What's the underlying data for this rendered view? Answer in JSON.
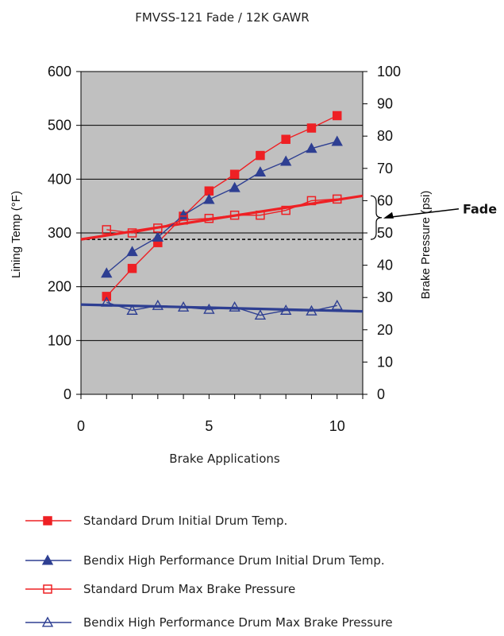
{
  "chart_data": {
    "type": "line",
    "title": "FMVSS-121 Fade / 12K GAWR",
    "xlabel": "Brake Applications",
    "ylabel_left": "Lining Temp (°F)",
    "ylabel_right": "Brake Pressure (psi)",
    "xlim": [
      0,
      11
    ],
    "ylim_left": [
      0,
      600
    ],
    "ylim_right": [
      0,
      100
    ],
    "x_ticks": [
      0,
      5,
      10
    ],
    "y_ticks_left": [
      0,
      100,
      200,
      300,
      400,
      500,
      600
    ],
    "y_ticks_right": [
      0,
      10,
      20,
      30,
      40,
      50,
      60,
      70,
      80,
      90,
      100
    ],
    "grid": true,
    "plot_background": "#c0c0c0",
    "series": [
      {
        "name": "Standard Drum Initial Drum Temp.",
        "axis": "left",
        "color": "#ee2024",
        "marker": "filled-square",
        "x": [
          1,
          2,
          3,
          4,
          5,
          6,
          7,
          8,
          9,
          10
        ],
        "y": [
          182,
          234,
          282,
          331,
          378,
          409,
          444,
          474,
          495,
          518
        ]
      },
      {
        "name": "Bendix High Performance Drum Initial Drum Temp.",
        "axis": "left",
        "color": "#2e3f92",
        "marker": "filled-triangle",
        "x": [
          1,
          2,
          3,
          4,
          5,
          6,
          7,
          8,
          9,
          10
        ],
        "y": [
          225,
          265,
          292,
          333,
          362,
          384,
          413,
          433,
          457,
          470
        ]
      },
      {
        "name": "Standard Drum Max Brake Pressure",
        "axis": "right",
        "color": "#ee2024",
        "marker": "open-square",
        "x": [
          1,
          2,
          3,
          4,
          5,
          6,
          7,
          8,
          9,
          10
        ],
        "y": [
          51,
          50,
          51.5,
          54,
          54.5,
          55.5,
          55.5,
          57,
          60,
          60.5
        ]
      },
      {
        "name": "Bendix High Performance Drum Max Brake Pressure",
        "axis": "right",
        "color": "#2e3f92",
        "marker": "open-triangle",
        "x": [
          1,
          2,
          3,
          4,
          5,
          6,
          7,
          8,
          9,
          10
        ],
        "y": [
          28.5,
          26,
          27.5,
          27,
          26.3,
          27,
          24.5,
          26,
          25.8,
          27.5
        ]
      }
    ],
    "trendlines": [
      {
        "axis": "right",
        "color": "#ee2024",
        "x": [
          0,
          11
        ],
        "y": [
          48,
          61.5
        ]
      },
      {
        "axis": "right",
        "color": "#2e3f92",
        "x": [
          0,
          11
        ],
        "y": [
          27.8,
          25.7
        ]
      }
    ],
    "reference_line": {
      "axis": "right",
      "y": 48,
      "style": "dashed",
      "color": "#000000"
    },
    "annotation": {
      "text": "Fade",
      "axis": "right",
      "y_range": [
        48,
        61.5
      ]
    },
    "legend_position": "bottom"
  }
}
